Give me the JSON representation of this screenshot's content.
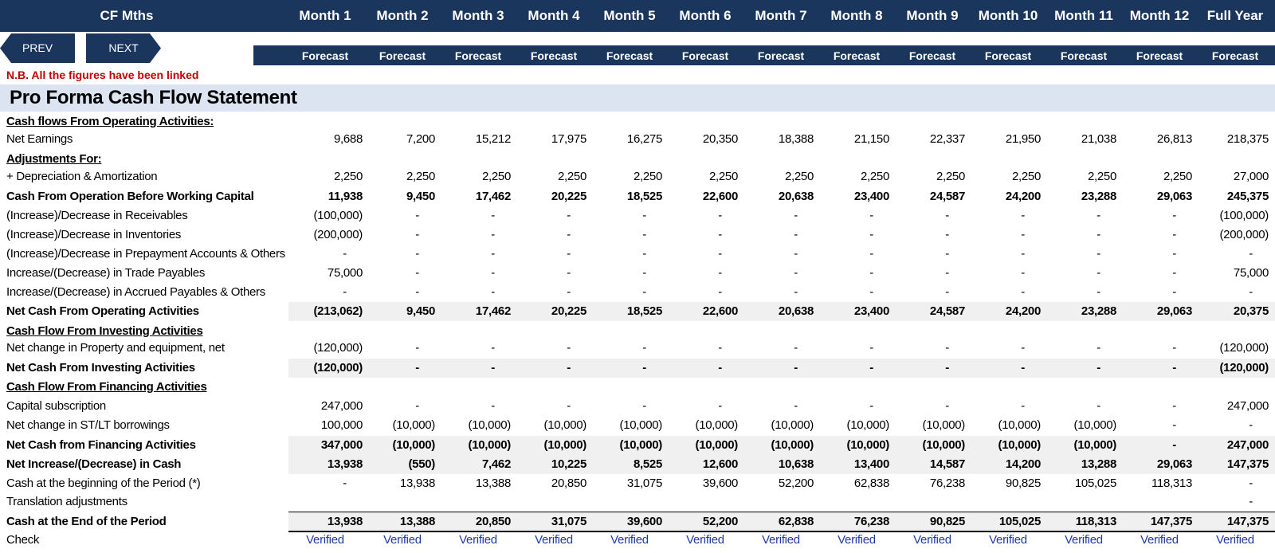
{
  "header": {
    "title": "CF Mths",
    "columns": [
      "Month 1",
      "Month 2",
      "Month 3",
      "Month 4",
      "Month 5",
      "Month 6",
      "Month 7",
      "Month 8",
      "Month 9",
      "Month 10",
      "Month 11",
      "Month 12",
      "Full Year"
    ],
    "subheader": [
      "Forecast",
      "Forecast",
      "Forecast",
      "Forecast",
      "Forecast",
      "Forecast",
      "Forecast",
      "Forecast",
      "Forecast",
      "Forecast",
      "Forecast",
      "Forecast",
      "Forecast"
    ]
  },
  "nav": {
    "prev_label": "PREV",
    "next_label": "NEXT"
  },
  "note": "N.B. All the figures have been linked",
  "statement_title": "Pro Forma Cash Flow Statement",
  "rows": [
    {
      "label": "Cash flows From Operating Activities:",
      "style": "sec",
      "values": []
    },
    {
      "label": "Net Earnings",
      "style": "",
      "values": [
        "9,688",
        "7,200",
        "15,212",
        "17,975",
        "16,275",
        "20,350",
        "18,388",
        "21,150",
        "22,337",
        "21,950",
        "21,038",
        "26,813",
        "218,375"
      ]
    },
    {
      "label": "Adjustments For:",
      "style": "sec",
      "values": []
    },
    {
      "label": " + Depreciation & Amortization",
      "style": "",
      "values": [
        "2,250",
        "2,250",
        "2,250",
        "2,250",
        "2,250",
        "2,250",
        "2,250",
        "2,250",
        "2,250",
        "2,250",
        "2,250",
        "2,250",
        "27,000"
      ]
    },
    {
      "label": "Cash From Operation Before Working Capital",
      "style": "bold",
      "values": [
        "11,938",
        "9,450",
        "17,462",
        "20,225",
        "18,525",
        "22,600",
        "20,638",
        "23,400",
        "24,587",
        "24,200",
        "23,288",
        "29,063",
        "245,375"
      ]
    },
    {
      "label": "(Increase)/Decrease in Receivables",
      "style": "",
      "values": [
        "(100,000)",
        "-",
        "-",
        "-",
        "-",
        "-",
        "-",
        "-",
        "-",
        "-",
        "-",
        "-",
        "(100,000)"
      ]
    },
    {
      "label": "(Increase)/Decrease in Inventories",
      "style": "",
      "values": [
        "(200,000)",
        "-",
        "-",
        "-",
        "-",
        "-",
        "-",
        "-",
        "-",
        "-",
        "-",
        "-",
        "(200,000)"
      ]
    },
    {
      "label": "(Increase)/Decrease in Prepayment Accounts & Others",
      "style": "",
      "values": [
        "-",
        "-",
        "-",
        "-",
        "-",
        "-",
        "-",
        "-",
        "-",
        "-",
        "-",
        "-",
        "-"
      ]
    },
    {
      "label": "Increase/(Decrease) in Trade Payables",
      "style": "",
      "values": [
        "75,000",
        "-",
        "-",
        "-",
        "-",
        "-",
        "-",
        "-",
        "-",
        "-",
        "-",
        "-",
        "75,000"
      ]
    },
    {
      "label": "Increase/(Decrease) in Accrued Payables & Others",
      "style": "",
      "values": [
        "-",
        "-",
        "-",
        "-",
        "-",
        "-",
        "-",
        "-",
        "-",
        "-",
        "-",
        "-",
        "-"
      ]
    },
    {
      "label": "Net Cash From Operating Activities",
      "style": "bold",
      "shade": true,
      "values": [
        "(213,062)",
        "9,450",
        "17,462",
        "20,225",
        "18,525",
        "22,600",
        "20,638",
        "23,400",
        "24,587",
        "24,200",
        "23,288",
        "29,063",
        "20,375"
      ]
    },
    {
      "label": "Cash Flow From Investing Activities",
      "style": "sec",
      "values": []
    },
    {
      "label": "Net change in Property and equipment, net",
      "style": "",
      "values": [
        "(120,000)",
        "-",
        "-",
        "-",
        "-",
        "-",
        "-",
        "-",
        "-",
        "-",
        "-",
        "-",
        "(120,000)"
      ]
    },
    {
      "label": "Net Cash From Investing Activities",
      "style": "bold",
      "shade": true,
      "values": [
        "(120,000)",
        "-",
        "-",
        "-",
        "-",
        "-",
        "-",
        "-",
        "-",
        "-",
        "-",
        "-",
        "(120,000)"
      ]
    },
    {
      "label": "Cash Flow From Financing Activities",
      "style": "sec",
      "values": []
    },
    {
      "label": "Capital subscription",
      "style": "",
      "values": [
        "247,000",
        "-",
        "-",
        "-",
        "-",
        "-",
        "-",
        "-",
        "-",
        "-",
        "-",
        "-",
        "247,000"
      ]
    },
    {
      "label": "Net change in ST/LT borrowings",
      "style": "",
      "values": [
        "100,000",
        "(10,000)",
        "(10,000)",
        "(10,000)",
        "(10,000)",
        "(10,000)",
        "(10,000)",
        "(10,000)",
        "(10,000)",
        "(10,000)",
        "(10,000)",
        "-",
        "-"
      ]
    },
    {
      "label": "Net Cash from Financing Activities",
      "style": "bold",
      "shade": true,
      "values": [
        "347,000",
        "(10,000)",
        "(10,000)",
        "(10,000)",
        "(10,000)",
        "(10,000)",
        "(10,000)",
        "(10,000)",
        "(10,000)",
        "(10,000)",
        "(10,000)",
        "-",
        "247,000"
      ]
    },
    {
      "label": "Net Increase/(Decrease) in Cash",
      "style": "bold",
      "shade": true,
      "values": [
        "13,938",
        "(550)",
        "7,462",
        "10,225",
        "8,525",
        "12,600",
        "10,638",
        "13,400",
        "14,587",
        "14,200",
        "13,288",
        "29,063",
        "147,375"
      ]
    },
    {
      "label": "Cash at the beginning of the Period (*)",
      "style": "",
      "values": [
        "-",
        "13,938",
        "13,388",
        "20,850",
        "31,075",
        "39,600",
        "52,200",
        "62,838",
        "76,238",
        "90,825",
        "105,025",
        "118,313",
        "-"
      ]
    },
    {
      "label": "Translation adjustments",
      "style": "",
      "values": [
        "",
        "",
        "",
        "",
        "",
        "",
        "",
        "",
        "",
        "",
        "",
        "",
        "-"
      ]
    },
    {
      "label": "Cash at the End of the Period",
      "style": "bold",
      "shade": true,
      "values": [
        "13,938",
        "13,388",
        "20,850",
        "31,075",
        "39,600",
        "52,200",
        "62,838",
        "76,238",
        "90,825",
        "105,025",
        "118,313",
        "147,375",
        "147,375"
      ]
    },
    {
      "label": "Check",
      "style": "check",
      "values": [
        "Verified",
        "Verified",
        "Verified",
        "Verified",
        "Verified",
        "Verified",
        "Verified",
        "Verified",
        "Verified",
        "Verified",
        "Verified",
        "Verified",
        "Verified"
      ]
    }
  ]
}
